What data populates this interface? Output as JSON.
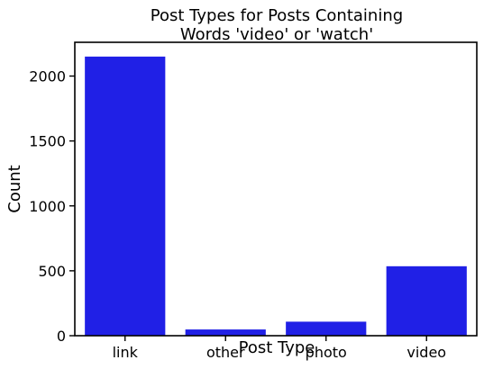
{
  "chart_data": {
    "type": "bar",
    "title": "Post Types for Posts Containing Words 'video' or 'watch'",
    "title_lines": [
      "Post Types for Posts Containing",
      "Words 'video' or 'watch'"
    ],
    "xlabel": "Post Type",
    "ylabel": "Count",
    "categories": [
      "link",
      "other",
      "photo",
      "video"
    ],
    "values": [
      2150,
      48,
      108,
      535
    ],
    "ylim": [
      0,
      2260
    ],
    "yticks": [
      0,
      500,
      1000,
      1500,
      2000
    ],
    "grid": false,
    "bar_color": "#2020e6"
  }
}
